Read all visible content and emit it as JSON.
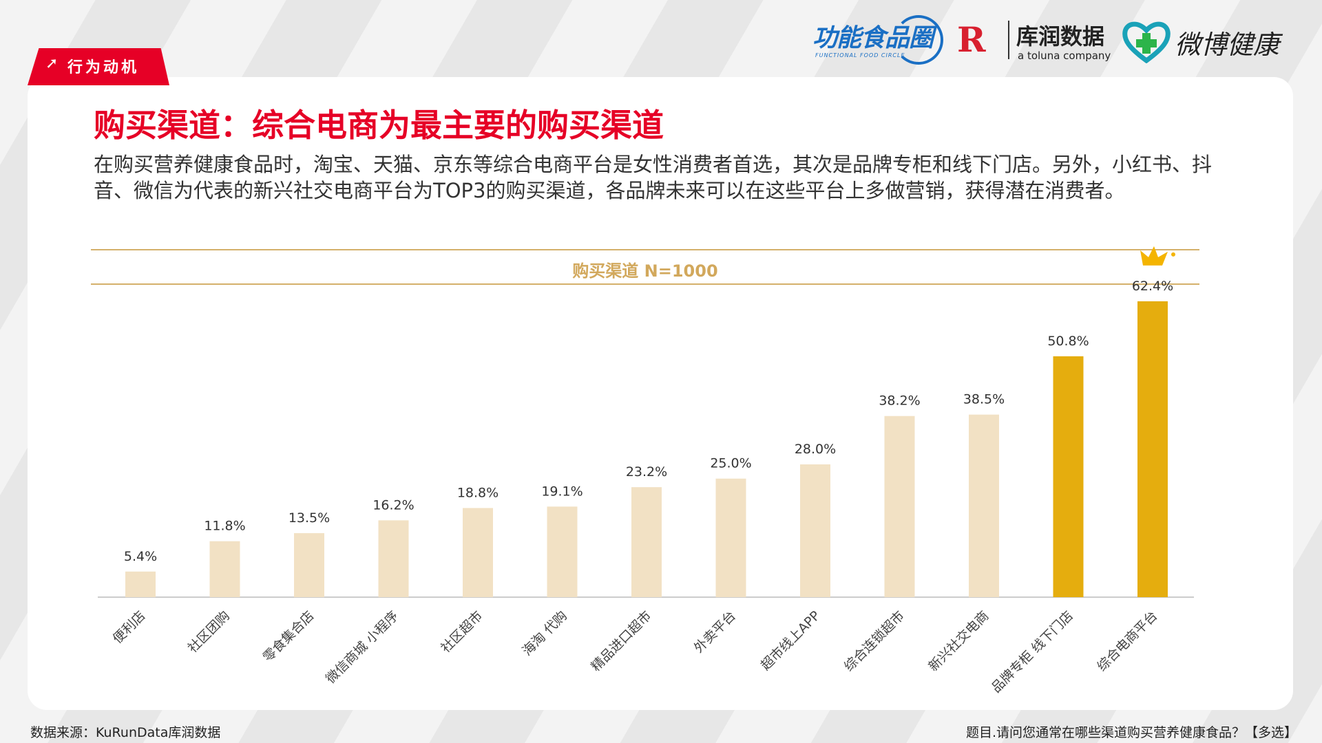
{
  "section_tag": {
    "arrow": "➚",
    "label": "行为动机"
  },
  "logos": {
    "functional_food": {
      "name": "功能食品圈",
      "sub": "FUNCTIONAL FOOD CIRCLE"
    },
    "kurun": {
      "mark": "R",
      "name": "库润数据",
      "sub": "a toluna company"
    },
    "weibo_health": {
      "name": "微博健康"
    }
  },
  "title": "购买渠道：综合电商为最主要的购买渠道",
  "description": "在购买营养健康食品时，淘宝、天猫、京东等综合电商平台是女性消费者首选，其次是品牌专柜和线下门店。另外，小红书、抖音、微信为代表的新兴社交电商平台为TOP3的购买渠道，各品牌未来可以在这些平台上多做营销，获得潜在消费者。",
  "chart_data": {
    "type": "bar",
    "title": "购买渠道 N=1000",
    "categories": [
      "便利店",
      "社区团购",
      "零食集合店",
      "微信商城 小程序",
      "社区超市",
      "海淘 代购",
      "精品进口超市",
      "外卖平台",
      "超市线上APP",
      "综合连锁超市",
      "新兴社交电商",
      "品牌专柜 线下门店",
      "综合电商平台"
    ],
    "values": [
      5.4,
      11.8,
      13.5,
      16.2,
      18.8,
      19.1,
      23.2,
      25.0,
      28.0,
      38.2,
      38.5,
      50.8,
      62.4
    ],
    "labels": [
      "5.4%",
      "11.8%",
      "13.5%",
      "16.2%",
      "18.8%",
      "19.1%",
      "23.2%",
      "25.0%",
      "28.0%",
      "38.2%",
      "38.5%",
      "50.8%",
      "62.4%"
    ],
    "highlighted": [
      false,
      false,
      false,
      false,
      false,
      false,
      false,
      false,
      false,
      false,
      false,
      true,
      true
    ],
    "crown_on_top": true,
    "colors": {
      "normal": "#f2e1c4",
      "highlight": "#e5ad0e",
      "axis": "#cccccc",
      "crown": "#f4b400"
    },
    "ylim": [
      0,
      65
    ],
    "grid": false,
    "legend": "none"
  },
  "footer": {
    "source": "数据来源：KuRunData库润数据",
    "question": "题目.请问您通常在哪些渠道购买营养健康食品？【多选】"
  }
}
